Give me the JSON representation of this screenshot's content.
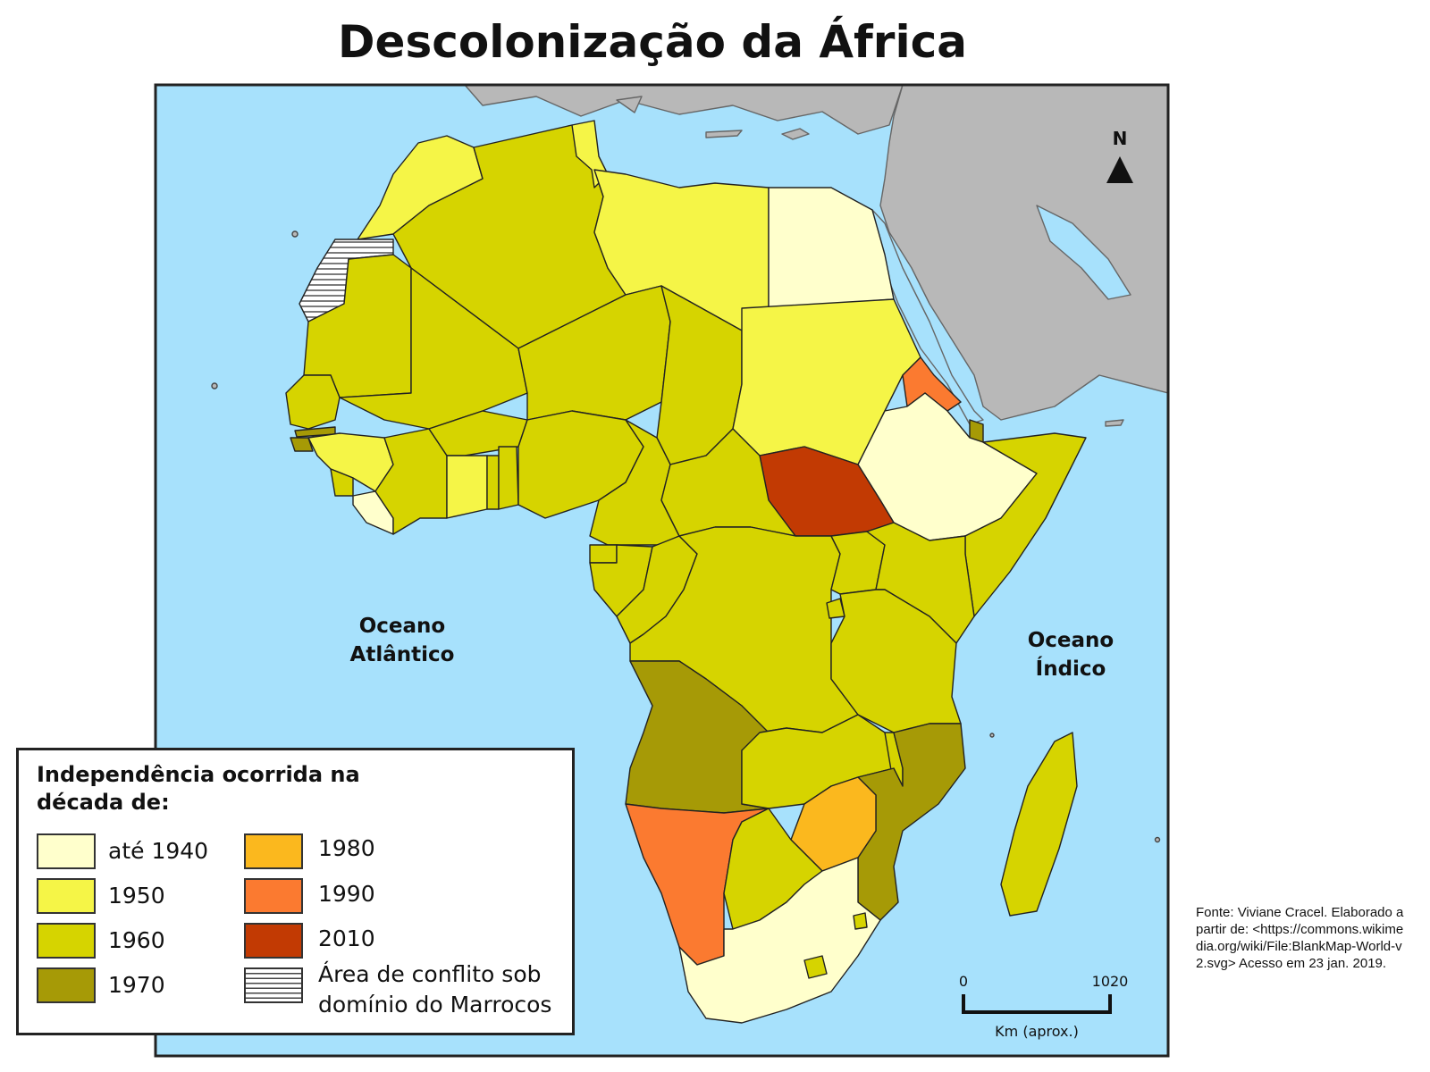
{
  "title": "Descolonização da África",
  "oceans": {
    "atlantic_line1": "Oceano",
    "atlantic_line2": "Atlântico",
    "indian_line1": "Oceano",
    "indian_line2": "Índico"
  },
  "north_label": "N",
  "scale": {
    "start": "0",
    "end": "1020",
    "unit": "Km (aprox.)"
  },
  "legend": {
    "title": "Independência ocorrida na década de:",
    "items": [
      {
        "label": "até 1940",
        "color": "#ffffcc"
      },
      {
        "label": "1950",
        "color": "#f5f547"
      },
      {
        "label": "1960",
        "color": "#d6d400"
      },
      {
        "label": "1970",
        "color": "#a69a06"
      },
      {
        "label": "1980",
        "color": "#fbb81e"
      },
      {
        "label": "1990",
        "color": "#fb7a30"
      },
      {
        "label": "2010",
        "color": "#c23a03"
      }
    ],
    "conflict_line1": "Área de conflito sob",
    "conflict_line2": "domínio do Marrocos"
  },
  "source": "Fonte: Viviane Cracel. Elaborado a partir de: <https://commons.wikimedia.org/wiki/File:BlankMap-World-v2.svg> Acesso em 23 jan. 2019.",
  "colors": {
    "ocean": "#a7e1fc",
    "land_other": "#b8b8b8",
    "border": "#222222"
  }
}
